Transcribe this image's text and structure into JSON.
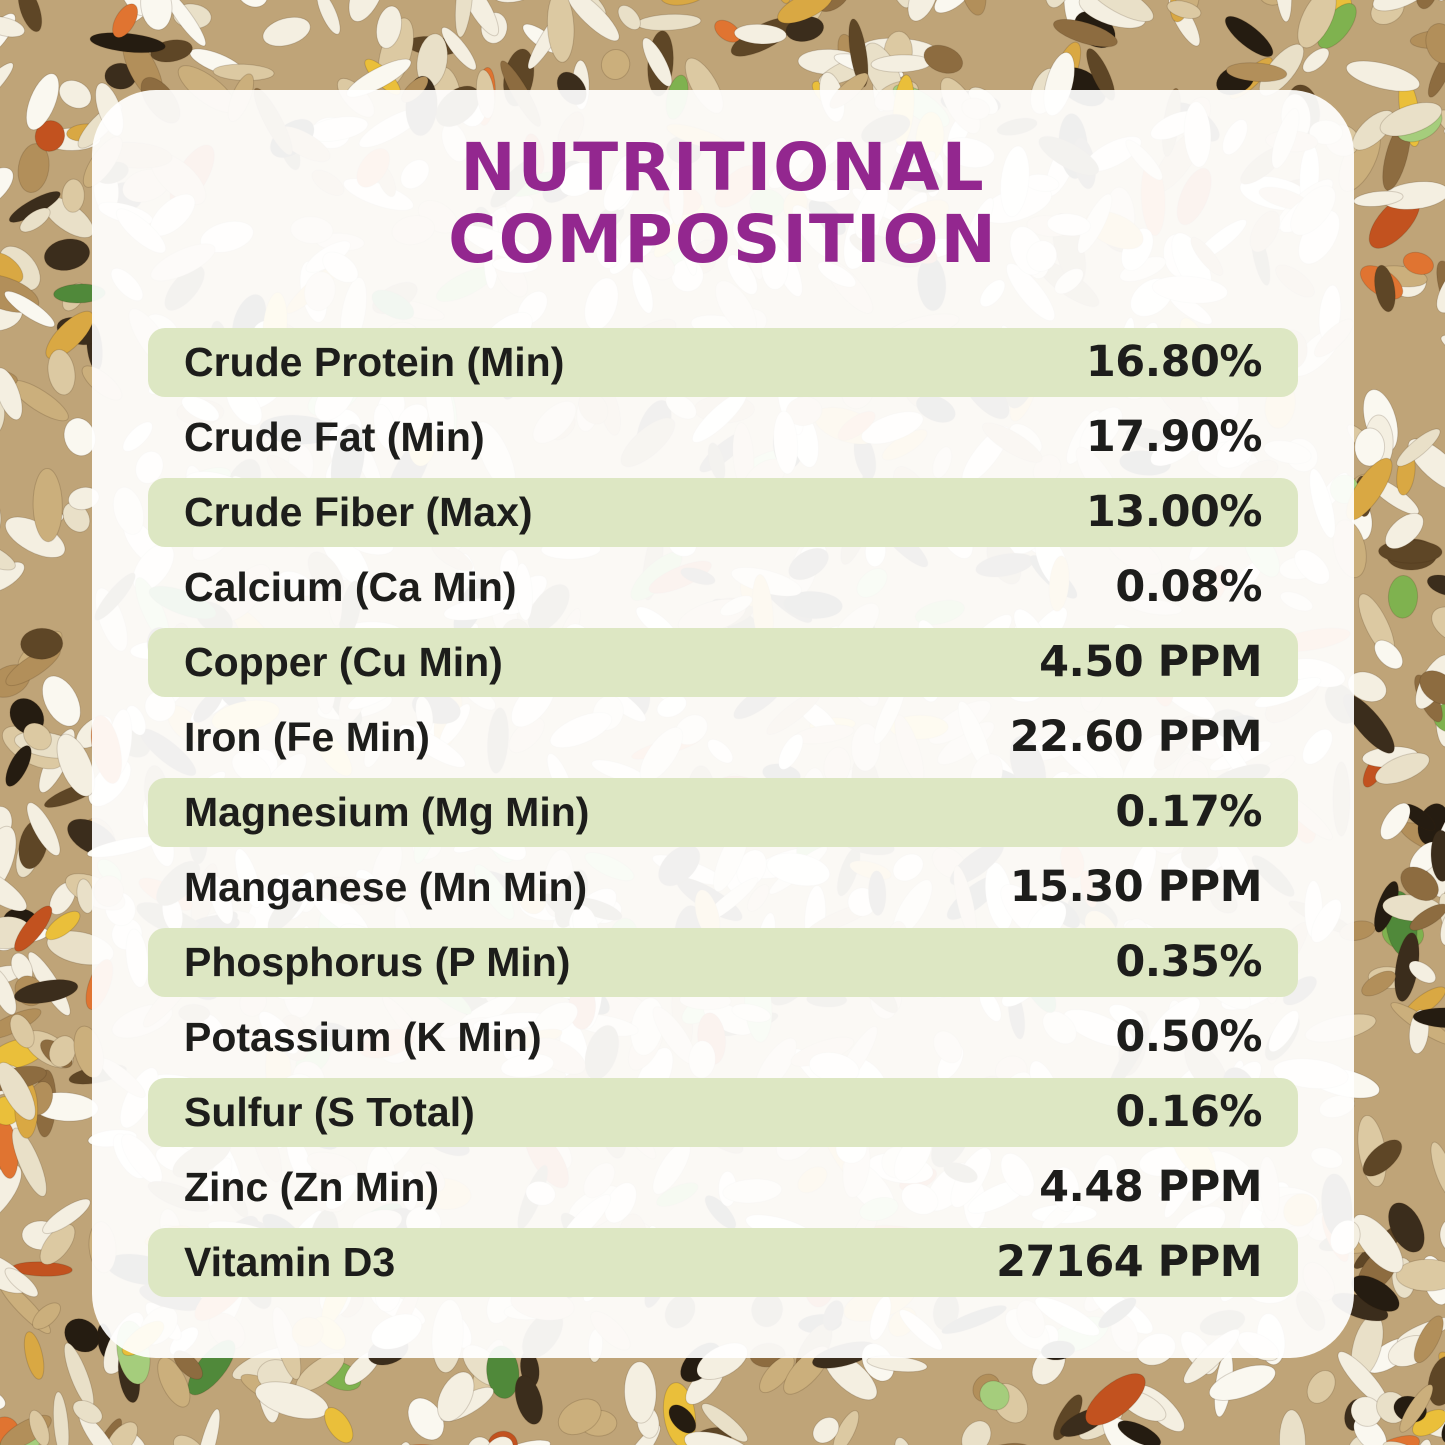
{
  "header": {
    "title_line1": "NUTRITIONAL",
    "title_line2": "COMPOSITION"
  },
  "table": {
    "rows": [
      {
        "label": "Crude Protein (Min)",
        "value": "16.80%"
      },
      {
        "label": "Crude Fat (Min)",
        "value": "17.90%"
      },
      {
        "label": "Crude Fiber (Max)",
        "value": "13.00%"
      },
      {
        "label": "Calcium (Ca Min)",
        "value": "0.08%"
      },
      {
        "label": "Copper (Cu Min)",
        "value": "4.50 PPM"
      },
      {
        "label": "Iron (Fe Min)",
        "value": "22.60 PPM"
      },
      {
        "label": "Magnesium (Mg Min)",
        "value": "0.17%"
      },
      {
        "label": "Manganese (Mn Min)",
        "value": "15.30 PPM"
      },
      {
        "label": "Phosphorus (P Min)",
        "value": "0.35%"
      },
      {
        "label": "Potassium (K Min)",
        "value": "0.50%"
      },
      {
        "label": "Sulfur (S Total)",
        "value": "0.16%"
      },
      {
        "label": "Zinc (Zn Min)",
        "value": "4.48 PPM"
      },
      {
        "label": "Vitamin D3",
        "value": "27164 PPM"
      }
    ]
  },
  "theme": {
    "accent_purple": "#93278f",
    "row_green": "#dde7c3",
    "text_color": "#1d1d1b",
    "card_background": "#ffffff"
  }
}
